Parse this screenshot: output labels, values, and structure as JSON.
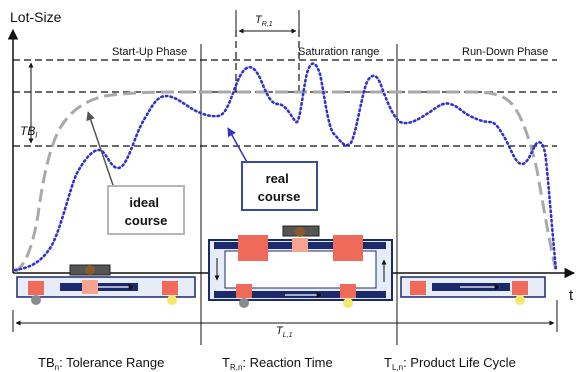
{
  "axes": {
    "y_label": "Lot-Size",
    "x_label": "t"
  },
  "phases": {
    "startup": "Start-Up Phase",
    "saturation": "Saturation range",
    "rundown": "Run-Down Phase"
  },
  "measures": {
    "tolerance": {
      "main": "TB",
      "sub": "l"
    },
    "reaction": {
      "main": "T",
      "sub": "R,1"
    },
    "lifecycle": {
      "main": "T",
      "sub": "L,1"
    }
  },
  "callouts": {
    "ideal": [
      "ideal",
      "course"
    ],
    "real": [
      "real",
      "course"
    ]
  },
  "legend": [
    {
      "main": "TB",
      "sub": "n",
      "rest": ": Tolerance Range"
    },
    {
      "main": "T",
      "sub": "R,n",
      "rest": ": Reaction Time"
    },
    {
      "main": "T",
      "sub": "L,n",
      "rest": ": Product Life Cycle"
    }
  ],
  "colors": {
    "ideal_curve": "#a9a9a9",
    "real_curve": "#3333cc",
    "real_callout_text": "#2a3fc0",
    "conveyor": "#1b2a6b",
    "machine_block": "#f06a5a",
    "part_gray": "#8a8a8a",
    "part_yellow": "#f3e86a",
    "part_brown": "#8b5a2b"
  }
}
